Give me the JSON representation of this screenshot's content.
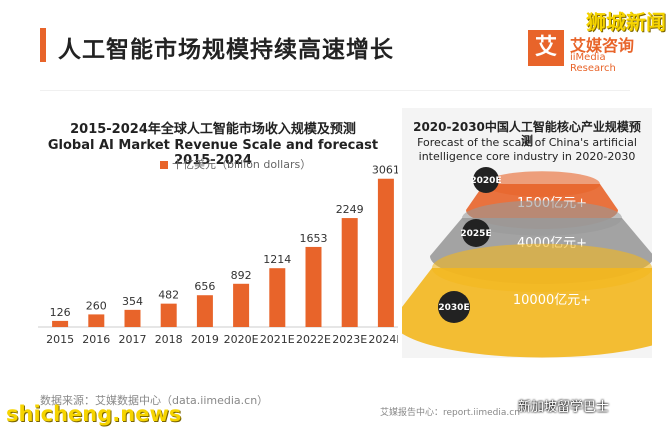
{
  "header": {
    "title": "人工智能市场规模持续高速增长"
  },
  "logo": {
    "badge": "艾",
    "name": "艾媒咨询",
    "sub": "iiMedia Research"
  },
  "watermarks": {
    "top_right": "狮城新闻",
    "bottom_left": "shicheng.news",
    "wechat": "新加坡留学巴士"
  },
  "footer": {
    "source": "数据来源：艾媒数据中心（data.iimedia.cn）",
    "report": "艾媒报告中心：report.iimedia.cn"
  },
  "chart_data": [
    {
      "type": "bar",
      "title": "2015-2024年全球人工智能市场收入规模及预测",
      "subtitle": "Global AI Market Revenue Scale and forecast 2015-2024",
      "legend": [
        "十亿美元（billion dollars）"
      ],
      "categories": [
        "2015",
        "2016",
        "2017",
        "2018",
        "2019",
        "2020E",
        "2021E",
        "2022E",
        "2023E",
        "2024E"
      ],
      "values": [
        126,
        260,
        354,
        482,
        656,
        892,
        1214,
        1653,
        2249,
        3061
      ],
      "ylim": [
        0,
        3200
      ],
      "grid": false,
      "color": "#e8642a"
    },
    {
      "type": "other",
      "title": "2020-2030中国人工智能核心产业规模预测",
      "subtitle": "Forecast of the scale of China's artificial intelligence core industry in 2020-2030",
      "items": [
        {
          "year": "2020E",
          "value_label": "1500亿元+",
          "value": 1500,
          "color": "#e8642a"
        },
        {
          "year": "2025E",
          "value_label": "4000亿元+",
          "value": 4000,
          "color": "#9a9a9a"
        },
        {
          "year": "2030E",
          "value_label": "10000亿元+",
          "value": 10000,
          "color": "#f3b71e"
        }
      ]
    }
  ]
}
